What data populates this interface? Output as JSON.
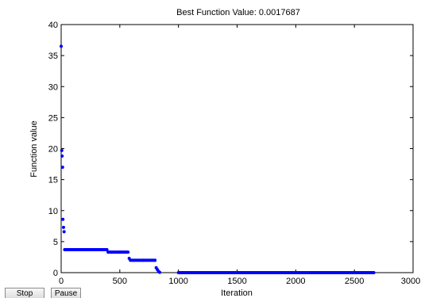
{
  "controls": {
    "stop_label": "Stop",
    "pause_label": "Pause"
  },
  "colors": {
    "marker": "#0000ff",
    "axis": "#000000",
    "background": "#ffffff"
  },
  "chart_data": {
    "type": "scatter",
    "title": "Best Function Value: 0.0017687",
    "xlabel": "Iteration",
    "ylabel": "Function value",
    "xlim": [
      0,
      3000
    ],
    "ylim": [
      0,
      40
    ],
    "xticks": [
      "0",
      "500",
      "1000",
      "1500",
      "2000",
      "2500",
      "3000"
    ],
    "yticks": [
      "0",
      "5",
      "10",
      "15",
      "20",
      "25",
      "30",
      "35",
      "40"
    ],
    "grid": false,
    "series": [
      {
        "points": [
          [
            0,
            36.5
          ],
          [
            5,
            19.7
          ],
          [
            8,
            18.8
          ],
          [
            12,
            17.0
          ],
          [
            15,
            8.6
          ],
          [
            20,
            7.3
          ],
          [
            25,
            6.6
          ],
          [
            30,
            3.7
          ],
          [
            100,
            3.7
          ],
          [
            200,
            3.7
          ],
          [
            300,
            3.7
          ],
          [
            390,
            3.7
          ],
          [
            400,
            3.3
          ],
          [
            500,
            3.3
          ],
          [
            570,
            3.3
          ],
          [
            580,
            2.3
          ],
          [
            590,
            2.0
          ],
          [
            700,
            2.0
          ],
          [
            800,
            2.0
          ],
          [
            810,
            0.8
          ],
          [
            820,
            0.5
          ],
          [
            830,
            0.2
          ],
          [
            840,
            0.05
          ],
          [
            1000,
            0.0
          ],
          [
            1500,
            0.0
          ],
          [
            2000,
            0.0
          ],
          [
            2500,
            0.0
          ],
          [
            2665,
            0.0018
          ]
        ]
      }
    ]
  }
}
